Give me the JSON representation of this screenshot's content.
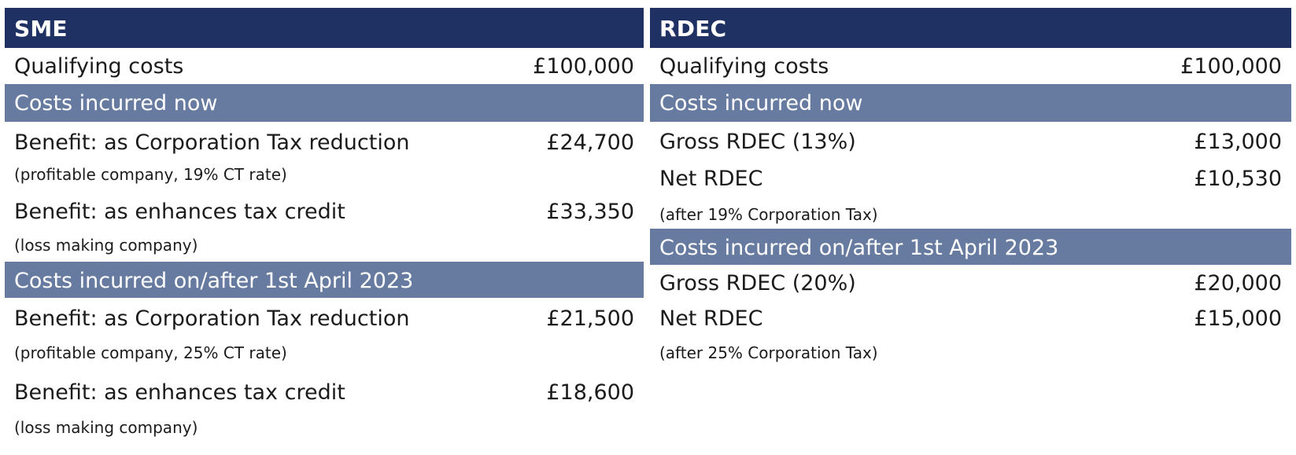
{
  "sme": {
    "title": "SME",
    "qualifying": {
      "label": "Qualifying costs",
      "value": "£100,000"
    },
    "section_now": {
      "title": "Costs incurred now",
      "rows": [
        {
          "label": "Benefit: as Corporation Tax reduction",
          "value": "£24,700",
          "note": "(profitable company, 19% CT rate)"
        },
        {
          "label": "Benefit: as enhances tax credit",
          "value": "£33,350",
          "note": "(loss making company)"
        }
      ]
    },
    "section_after": {
      "title": "Costs incurred on/after 1st April 2023",
      "rows": [
        {
          "label": "Benefit: as Corporation Tax reduction",
          "value": "£21,500",
          "note": "(profitable company, 25% CT rate)"
        },
        {
          "label": "Benefit: as enhances tax credit",
          "value": "£18,600",
          "note": "(loss making company)"
        }
      ]
    }
  },
  "rdec": {
    "title": "RDEC",
    "qualifying": {
      "label": "Qualifying costs",
      "value": "£100,000"
    },
    "section_now": {
      "title": "Costs incurred now",
      "gross": {
        "label": "Gross RDEC (13%)",
        "value": "£13,000"
      },
      "net": {
        "label": "Net RDEC",
        "value": "£10,530"
      },
      "note": "(after 19% Corporation Tax)"
    },
    "section_after": {
      "title": "Costs incurred on/after 1st April 2023",
      "gross": {
        "label": "Gross RDEC (20%)",
        "value": "£20,000"
      },
      "net": {
        "label": "Net RDEC",
        "value": "£15,000"
      },
      "note": "(after 25% Corporation Tax)"
    }
  },
  "colors": {
    "panel_header": "#1f3163",
    "section_header": "#677ba1",
    "text": "#1b1b1b"
  }
}
